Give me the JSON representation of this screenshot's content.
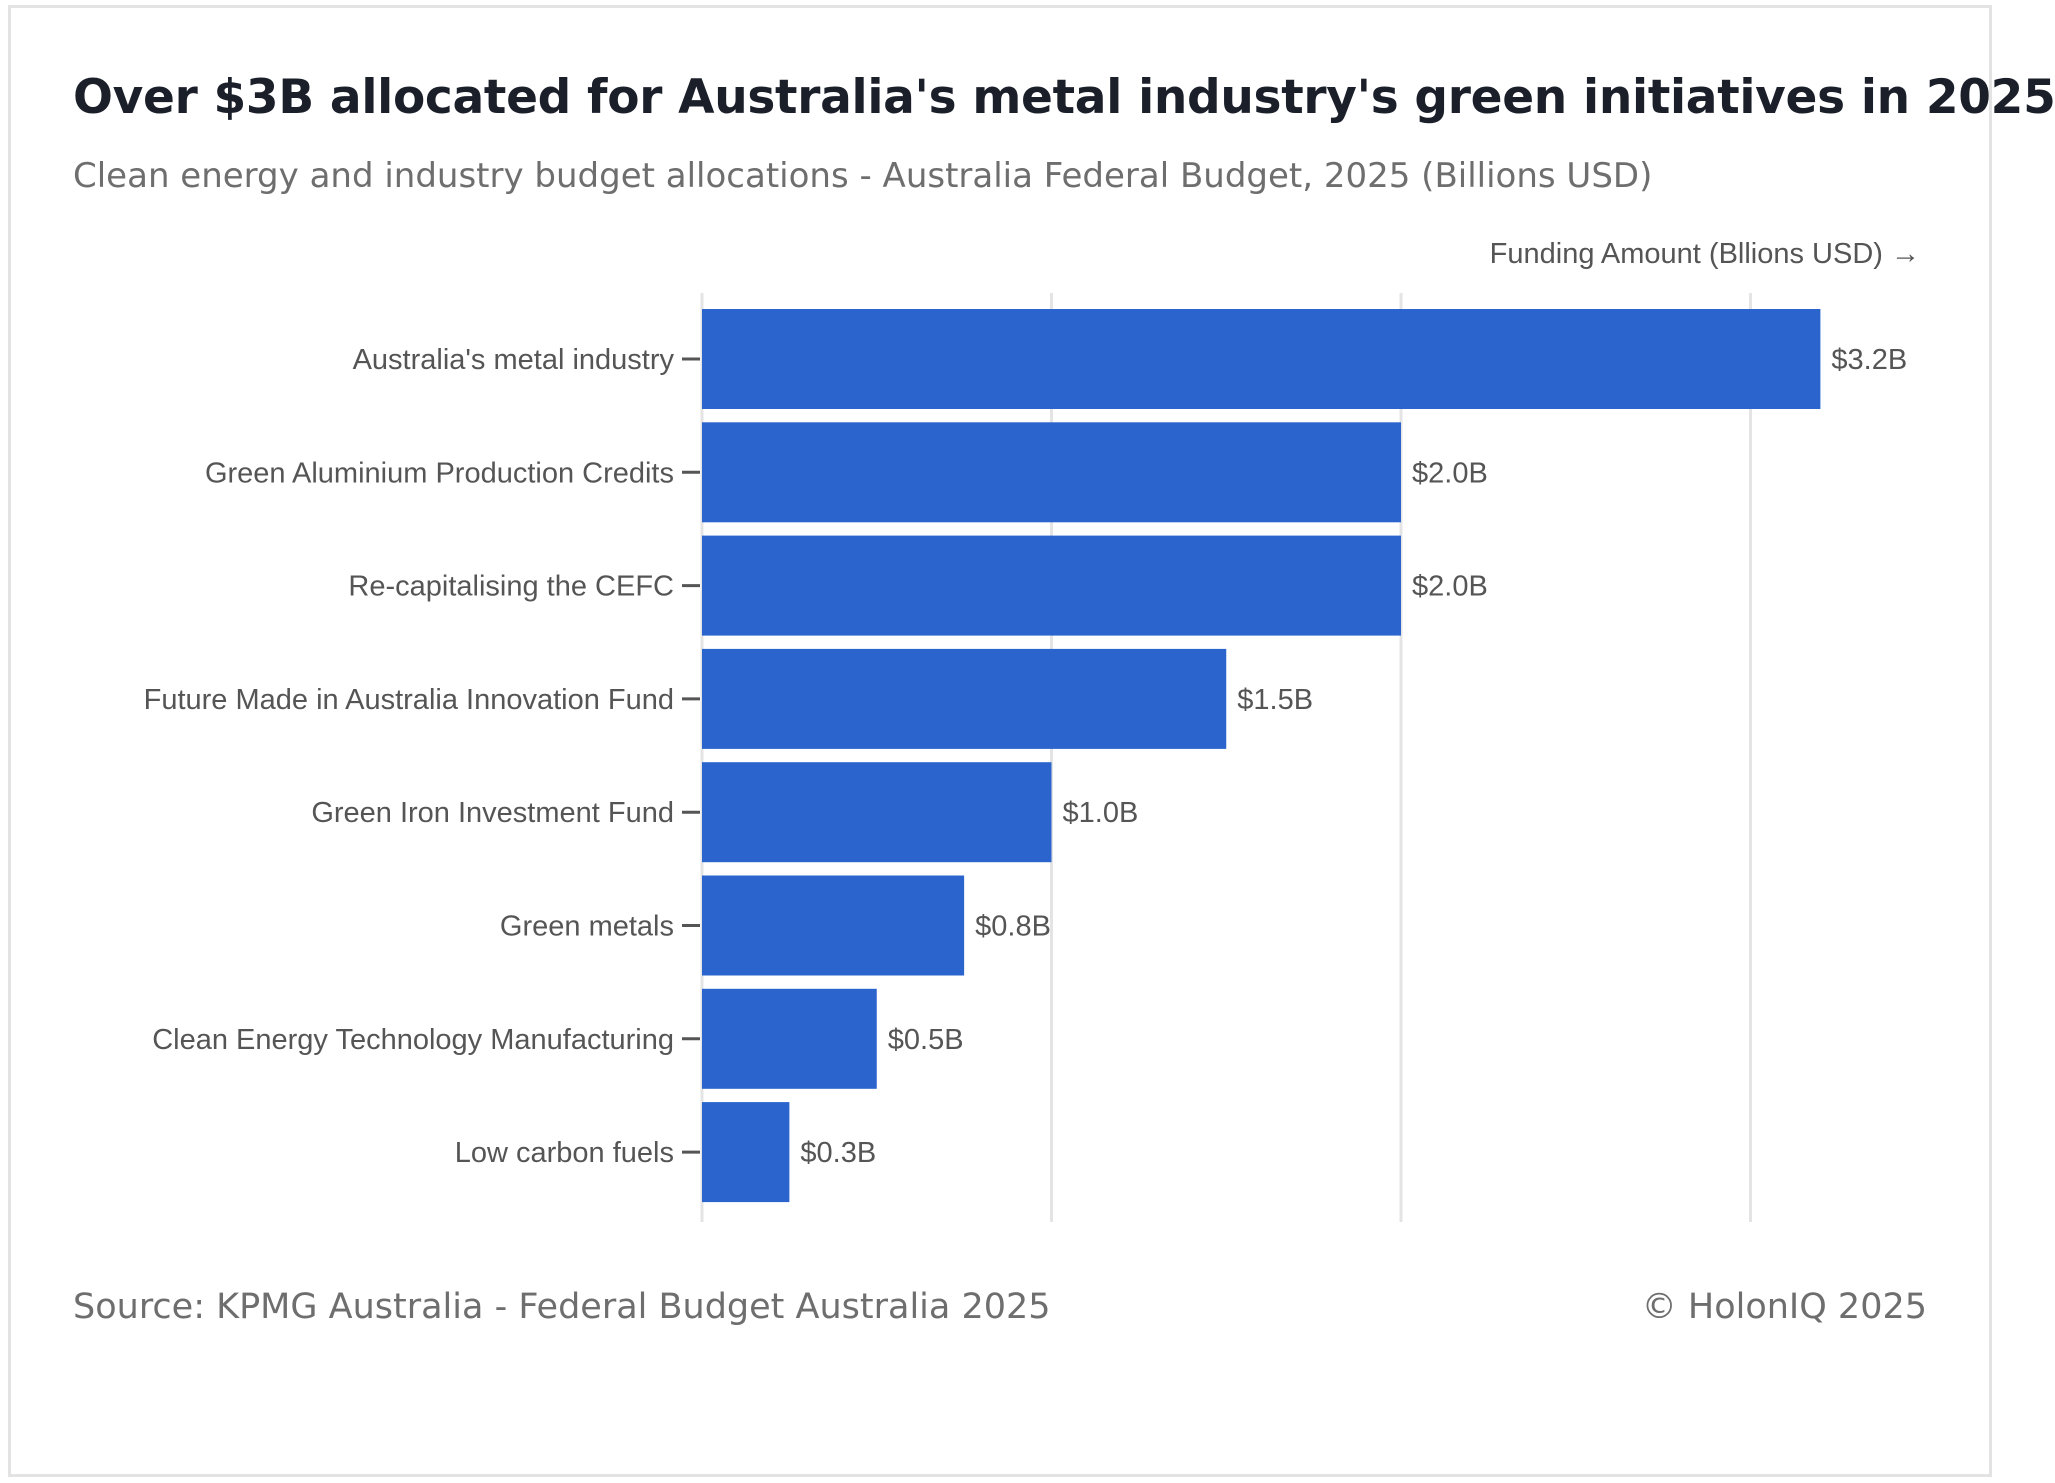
{
  "header": {
    "title": "Over $3B allocated for Australia's metal industry's green initiatives in 2025",
    "subtitle": "Clean energy and industry budget allocations - Australia Federal Budget, 2025 (Billions USD)"
  },
  "footer": {
    "source": "Source: KPMG Australia - Federal Budget Australia 2025",
    "copyright": "© HolonIQ 2025"
  },
  "colors": {
    "bar": "#2a64cc",
    "grid": "#e4e4e4",
    "label": "#555555",
    "axis": "#555555"
  },
  "chart_data": {
    "type": "bar",
    "orientation": "horizontal",
    "xlabel": "Funding Amount (Bllions USD) →",
    "ylabel": "",
    "xlim": [
      0,
      3.5
    ],
    "grid": true,
    "categories": [
      "Australia's metal industry",
      "Green Aluminium Production Credits",
      "Re-capitalising the CEFC",
      "Future Made in Australia Innovation Fund",
      "Green Iron Investment Fund",
      "Green metals",
      "Clean Energy Technology Manufacturing",
      "Low carbon fuels"
    ],
    "values": [
      3.2,
      2.0,
      2.0,
      1.5,
      1.0,
      0.75,
      0.5,
      0.25
    ],
    "value_labels": [
      "$3.2B",
      "$2.0B",
      "$2.0B",
      "$1.5B",
      "$1.0B",
      "$0.8B",
      "$0.5B",
      "$0.3B"
    ]
  }
}
